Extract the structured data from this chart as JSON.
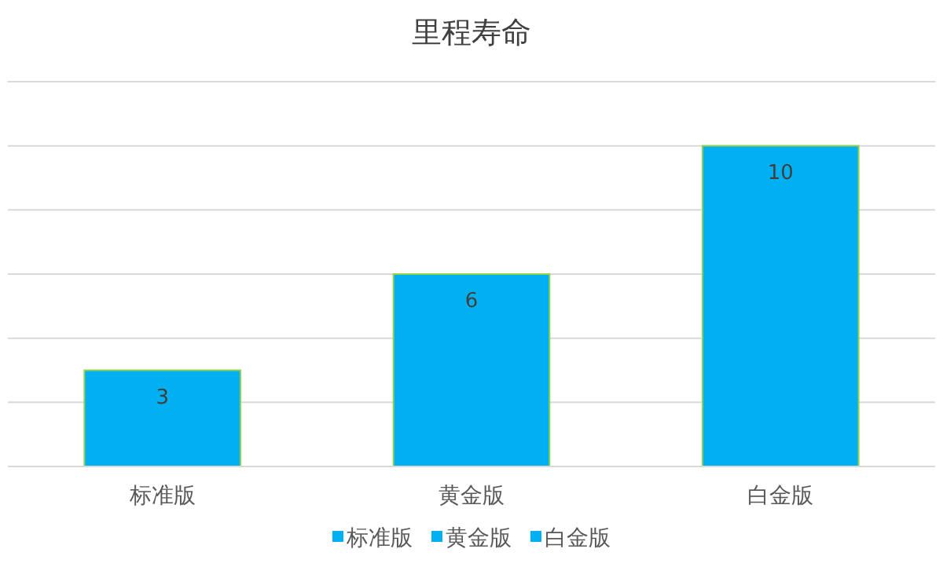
{
  "chart_data": {
    "type": "bar",
    "title": "里程寿命",
    "categories": [
      "标准版",
      "黄金版",
      "白金版"
    ],
    "stacked": true,
    "series": [
      {
        "name": "标准版",
        "color": "#00b0f0",
        "values": [
          3,
          null,
          null
        ]
      },
      {
        "name": "黄金版",
        "color": "#00b0f0",
        "values": [
          null,
          6,
          null
        ]
      },
      {
        "name": "白金版",
        "color": "#00b0f0",
        "values": [
          null,
          null,
          10
        ]
      }
    ],
    "ylim": [
      0,
      12
    ],
    "yticks": [
      {
        "value": 0,
        "label": null
      },
      {
        "value": 2,
        "label": null
      },
      {
        "value": 4,
        "label": null
      },
      {
        "value": 6,
        "label": null
      },
      {
        "value": 8,
        "label": null
      },
      {
        "value": 10,
        "label": null
      },
      {
        "value": 12,
        "label": null
      }
    ],
    "tick_labels": "x",
    "grid": "y",
    "data_labels": true,
    "legend": "bottom"
  }
}
